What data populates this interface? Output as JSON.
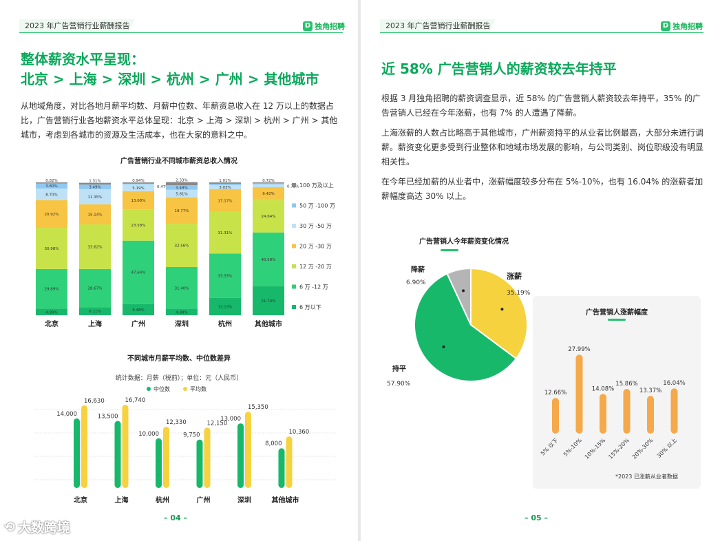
{
  "left": {
    "header": "2023 年广告营销行业薪酬报告",
    "logo": "独角招聘",
    "title_line1": "整体薪资水平呈现：",
    "title_line2": "北京 > 上海 > 深圳 > 杭州 > 广州 > 其他城市",
    "paragraph": "从地域角度，对比各地月薪平均数、月薪中位数、年薪资总收入在 12 万以上的数据占比，广告营销行业各地薪资水平总体呈现：北京 > 上海 > 深圳 > 杭州 > 广州 > 其他城市，考虑到各城市的资源及生活成本，也在大家的意料之中。",
    "page_number": "– 04 –"
  },
  "right": {
    "header": "2023 年广告营销行业薪酬报告",
    "logo": "独角招聘",
    "title": "近 58% 广告营销人的薪资较去年持平",
    "p1": "根据 3 月独角招聘的薪资调查显示，近 58% 的广告营销人薪资较去年持平，35% 的广告营销人已经在今年涨薪，也有 7% 的人遭遇了降薪。",
    "p2": "上海涨薪的人数占比略高于其他城市，广州薪资持平的从业者比例最高，大部分未进行调薪。薪资变化更多受到行业整体和地域市场发展的影响，与公司类别、岗位职级没有明显相关性。",
    "p3": "在今年已经加薪的从业者中，涨薪幅度较多分布在 5%-10%，也有 16.04% 的涨薪者加薪幅度高达 30% 以上。",
    "page_number": "– 05 –"
  },
  "watermark": "大数跨境",
  "colors": {
    "green": "#0aa85a",
    "s1": "#17b86a",
    "s2": "#2fd07a",
    "s3": "#c8e24a",
    "s4": "#f7c443",
    "s5": "#bfe1f6",
    "s6": "#8fc8f0",
    "s7": "#888888",
    "yellow": "#f7d23f",
    "orange": "#f5a94a",
    "gray": "#b5b5b5"
  },
  "chart_data": [
    {
      "type": "bar",
      "stacked": true,
      "title": "广告营销行业不同城市薪资总收入情况",
      "categories": [
        "北京",
        "上海",
        "广州",
        "深圳",
        "杭州",
        "其他城市"
      ],
      "series": [
        {
          "name": "6 万以下",
          "values": [
            4.89,
            6.11,
            8.48,
            4.88,
            13.13,
            21.74
          ]
        },
        {
          "name": "6 万 -12 万",
          "values": [
            29.89,
            28.67,
            47.64,
            31.4,
            33.33,
            40.58
          ]
        },
        {
          "name": "12 万 -20 万",
          "values": [
            30.98,
            33.62,
            23.58,
            32.56,
            31.31,
            24.64
          ]
        },
        {
          "name": "20 万 -30 万",
          "values": [
            20.92,
            15.14,
            13.68,
            19.77,
            17.17,
            9.42
          ]
        },
        {
          "name": "30 万 -50 万",
          "values": [
            8.7,
            11.35,
            5.19,
            5.81,
            3.03,
            2.17
          ]
        },
        {
          "name": "50 万 -100 万",
          "values": [
            3.8,
            3.49,
            0.47,
            3.49,
            1.01,
            0.72
          ]
        },
        {
          "name": "100 万及以上",
          "values": [
            0.82,
            1.31,
            0.94,
            2.33,
            1.01,
            0.72
          ]
        }
      ],
      "labels": [
        [
          "4.89%",
          "29.89%",
          "30.98%",
          "20.92%",
          "8.70%",
          "3.80%",
          "0.82%"
        ],
        [
          "6.11%",
          "28.67%",
          "33.62%",
          "15.14%",
          "11.35%",
          "3.49%",
          "1.31%"
        ],
        [
          "8.48%",
          "47.64%",
          "23.58%",
          "13.68%",
          "5.19%",
          "0.47%",
          "0.94%"
        ],
        [
          "4.88%",
          "31.40%",
          "32.56%",
          "19.77%",
          "5.81%",
          "3.49%",
          "2.33%"
        ],
        [
          "13.13%",
          "33.33%",
          "31.31%",
          "17.17%",
          "3.03%",
          "1.01%",
          "1.01%"
        ],
        [
          "21.74%",
          "40.58%",
          "24.64%",
          "9.42%",
          "2.17%",
          "0.72%",
          "0.72%"
        ]
      ],
      "legend": [
        "100 万及以上",
        "50 万 -100 万",
        "30 万 -50 万",
        "20 万 -30 万",
        "12 万 -20 万",
        "6 万 -12 万",
        "6 万以下"
      ]
    },
    {
      "type": "bar",
      "title": "不同城市月薪平均数、中位数差异",
      "subtitle": "统计数据：月薪（税前）；单位：元（人民币）",
      "categories": [
        "北京",
        "上海",
        "杭州",
        "广州",
        "深圳",
        "其他城市"
      ],
      "series": [
        {
          "name": "中位数",
          "values": [
            14000,
            13500,
            10000,
            9750,
            13000,
            8000
          ],
          "labels": [
            "14,000",
            "13,500",
            "10,000",
            "9,750",
            "13,000",
            "8,000"
          ]
        },
        {
          "name": "平均数",
          "values": [
            16630,
            16740,
            12330,
            12150,
            15350,
            10360
          ],
          "labels": [
            "16,630",
            "16,740",
            "12,330",
            "12,150",
            "15,350",
            "10,360"
          ]
        }
      ],
      "ylim": [
        0,
        18000
      ]
    },
    {
      "type": "pie",
      "title": "广告营销人今年薪资变化情况",
      "labels": [
        "涨薪",
        "持平",
        "降薪"
      ],
      "values": [
        35.19,
        57.9,
        6.9
      ],
      "value_labels": [
        "35.19%",
        "57.90%",
        "6.90%"
      ]
    },
    {
      "type": "bar",
      "title": "广告营销人涨薪幅度",
      "categories": [
        "5% 以下",
        "5%-10%",
        "10%-15%",
        "15%-20%",
        "20%-30%",
        "30% 以上"
      ],
      "values": [
        12.66,
        27.99,
        14.08,
        15.86,
        13.37,
        16.04
      ],
      "value_labels": [
        "12.66%",
        "27.99%",
        "14.08%",
        "15.86%",
        "13.37%",
        "16.04%"
      ],
      "note": "*2023 已涨薪从业者数据",
      "ylim": [
        0,
        30
      ]
    }
  ]
}
